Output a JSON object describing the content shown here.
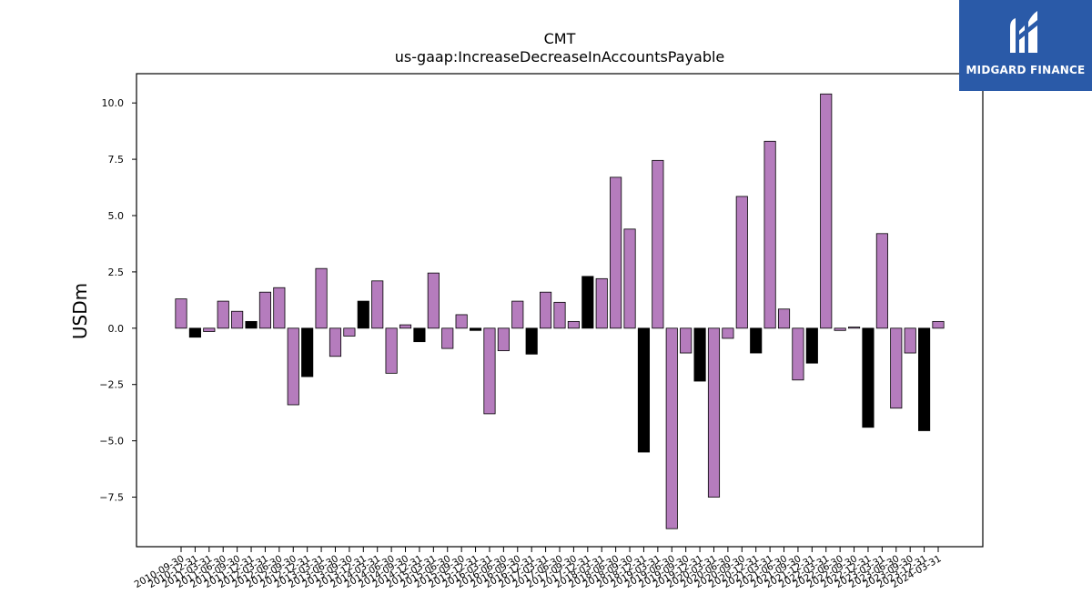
{
  "brand": {
    "name": "MIDGARD FINANCE",
    "color": "#2a5aa8"
  },
  "chart_data": {
    "type": "bar",
    "title": "CMT",
    "subtitle": "us-gaap:IncreaseDecreaseInAccountsPayable",
    "ylabel": "USDm",
    "xlabel": "",
    "ylim": [
      -9.7,
      11.3
    ],
    "yticks": [
      -7.5,
      -5.0,
      -2.5,
      0.0,
      2.5,
      5.0,
      7.5,
      10.0
    ],
    "colors": {
      "purple": "#b57cbd",
      "black": "#000000"
    },
    "categories": [
      "2010-09-30",
      "2010-12-31",
      "2011-03-31",
      "2011-06-30",
      "2011-09-30",
      "2011-12-31",
      "2012-03-31",
      "2012-06-30",
      "2012-09-30",
      "2012-12-31",
      "2013-03-31",
      "2013-06-30",
      "2013-09-30",
      "2013-12-31",
      "2014-03-31",
      "2014-06-30",
      "2014-09-30",
      "2014-12-31",
      "2015-03-31",
      "2015-06-30",
      "2015-09-30",
      "2015-12-31",
      "2016-03-31",
      "2016-06-30",
      "2016-09-30",
      "2016-12-31",
      "2017-03-31",
      "2017-06-30",
      "2017-09-30",
      "2017-12-31",
      "2018-03-31",
      "2018-06-30",
      "2018-09-30",
      "2018-12-31",
      "2019-03-31",
      "2019-06-30",
      "2019-09-30",
      "2019-12-31",
      "2020-03-31",
      "2020-06-30",
      "2020-09-30",
      "2020-12-31",
      "2021-03-31",
      "2021-06-30",
      "2021-09-30",
      "2021-12-31",
      "2022-03-31",
      "2022-06-30",
      "2022-09-30",
      "2022-12-31",
      "2023-03-31",
      "2023-06-30",
      "2023-09-30",
      "2023-12-31",
      "2024-03-31"
    ],
    "values": [
      1.3,
      -0.4,
      -0.15,
      1.2,
      0.75,
      0.3,
      1.6,
      1.8,
      -3.4,
      -2.15,
      2.65,
      -1.25,
      -0.35,
      1.2,
      2.1,
      -2.0,
      0.15,
      -0.6,
      2.45,
      -0.9,
      0.6,
      -0.1,
      -3.8,
      -1.0,
      1.2,
      -1.15,
      1.6,
      1.15,
      0.3,
      2.3,
      2.2,
      6.7,
      4.4,
      -5.5,
      7.45,
      -8.9,
      -1.1,
      -2.35,
      -7.5,
      -0.45,
      5.85,
      -1.1,
      8.3,
      0.85,
      -2.3,
      -1.55,
      10.4,
      -0.1,
      0.05,
      -4.4,
      4.2,
      -3.55,
      -1.1,
      -4.55,
      0.3
    ],
    "bar_colors": [
      "purple",
      "black",
      "purple",
      "purple",
      "purple",
      "black",
      "purple",
      "purple",
      "purple",
      "black",
      "purple",
      "purple",
      "purple",
      "black",
      "purple",
      "purple",
      "purple",
      "black",
      "purple",
      "purple",
      "purple",
      "black",
      "purple",
      "purple",
      "purple",
      "black",
      "purple",
      "purple",
      "purple",
      "black",
      "purple",
      "purple",
      "purple",
      "black",
      "purple",
      "purple",
      "purple",
      "black",
      "purple",
      "purple",
      "purple",
      "black",
      "purple",
      "purple",
      "purple",
      "black",
      "purple",
      "purple",
      "purple",
      "black",
      "purple",
      "purple",
      "purple",
      "black",
      "purple"
    ]
  }
}
